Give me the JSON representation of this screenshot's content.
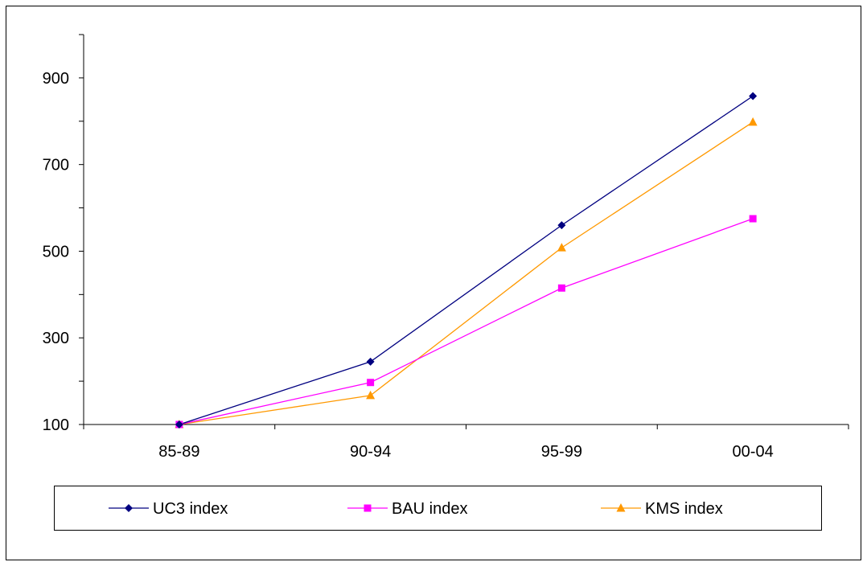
{
  "chart_data": {
    "type": "line",
    "title": "",
    "xlabel": "",
    "ylabel": "",
    "categories": [
      "85-89",
      "90-94",
      "95-99",
      "00-04"
    ],
    "ylim": [
      100,
      1000
    ],
    "yticks": [
      100,
      300,
      500,
      700,
      900
    ],
    "grid": false,
    "legend_placement": "bottom",
    "series": [
      {
        "name": "UC3 index",
        "values": [
          100,
          245,
          560,
          858
        ],
        "color": "#000080",
        "marker": "diamond"
      },
      {
        "name": "BAU index",
        "values": [
          100,
          197,
          415,
          575
        ],
        "color": "#FF00FF",
        "marker": "square"
      },
      {
        "name": "KMS index",
        "values": [
          100,
          167,
          508,
          798
        ],
        "color": "#FF9900",
        "marker": "triangle"
      }
    ]
  }
}
